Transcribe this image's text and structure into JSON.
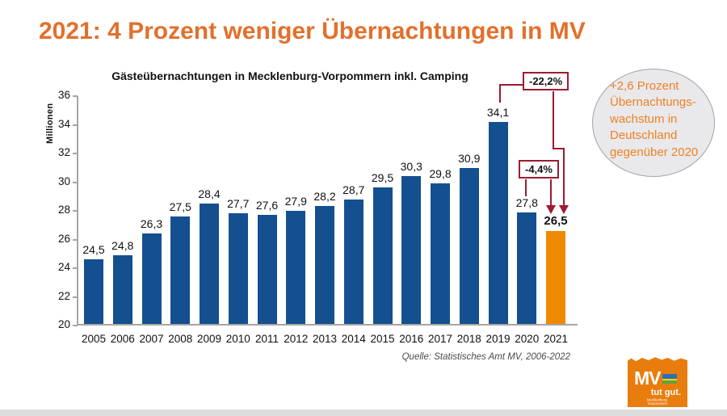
{
  "slide": {
    "title": "2021: 4 Prozent weniger Übernachtungen in MV",
    "source": "Quelle: Statistisches Amt MV, 2006-2022"
  },
  "chart_data": {
    "type": "bar",
    "title": "Gästeübernachtungen in Mecklenburg-Vorpommern inkl. Camping",
    "ylabel": "Millionen",
    "ylim": [
      20,
      36
    ],
    "ytick_step": 2,
    "grid": false,
    "legend": false,
    "categories": [
      "2005",
      "2006",
      "2007",
      "2008",
      "2009",
      "2010",
      "2011",
      "2012",
      "2013",
      "2014",
      "2015",
      "2016",
      "2017",
      "2018",
      "2019",
      "2020",
      "2021"
    ],
    "values": [
      24.5,
      24.8,
      26.3,
      27.5,
      28.4,
      27.7,
      27.6,
      27.9,
      28.2,
      28.7,
      29.5,
      30.3,
      29.8,
      30.9,
      34.1,
      27.8,
      26.5
    ],
    "decimal_separator": ",",
    "highlight_index": 16,
    "bar_color": "#14508F",
    "highlight_color": "#EF8A00",
    "annotation_color": "#9E1B32",
    "annotations": [
      {
        "label": "-22,2%",
        "from": "2019",
        "to": "2021"
      },
      {
        "label": "-4,4%",
        "from": "2020",
        "to": "2021"
      }
    ]
  },
  "callout": {
    "text": "+2,6 Prozent\nÜbernachtungs-\nwachstum in\nDeutschland\ngegenüber 2020",
    "text_color": "#EF8023",
    "fill_color": "#E9E9EB"
  },
  "logo": {
    "abbr": "MV",
    "slogan": "tut gut.",
    "region": "Mecklenburg-Vorpommern",
    "color": "#E87D0D"
  }
}
